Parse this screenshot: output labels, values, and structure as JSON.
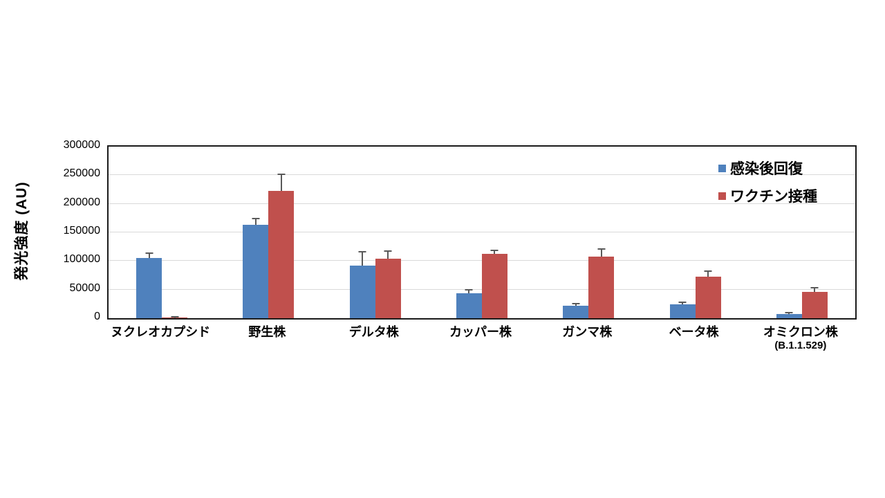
{
  "chart_data": {
    "type": "bar",
    "title": "",
    "ylabel": "発光強度 (AU)",
    "xlabel": "",
    "ylim": [
      0,
      300000
    ],
    "ytick_step": 50000,
    "ytick_labels": [
      "0",
      "50000",
      "100000",
      "150000",
      "200000",
      "250000",
      "300000"
    ],
    "grid": true,
    "legend_position": "top-right-inside",
    "categories": [
      "ヌクレオカプシド",
      "野生株",
      "デルタ株",
      "カッパー株",
      "ガンマ株",
      "ベータ株",
      "オミクロン株"
    ],
    "category_sublabels": [
      "",
      "",
      "",
      "",
      "",
      "",
      "(B.1.1.529)"
    ],
    "series": [
      {
        "name": "感染後回復",
        "color": "#4F81BD",
        "values": [
          105000,
          163000,
          92000,
          44000,
          22000,
          24000,
          7000
        ],
        "errors_plus": [
          8000,
          10000,
          23000,
          4000,
          2500,
          2500,
          1500
        ]
      },
      {
        "name": "ワクチン接種",
        "color": "#C0504D",
        "values": [
          1000,
          222000,
          104000,
          113000,
          108000,
          73000,
          46000
        ],
        "errors_plus": [
          800,
          29000,
          12000,
          4000,
          12000,
          8000,
          6000
        ]
      }
    ],
    "error_bar_color": "#595959",
    "gridline_color": "#D9D9D9"
  }
}
